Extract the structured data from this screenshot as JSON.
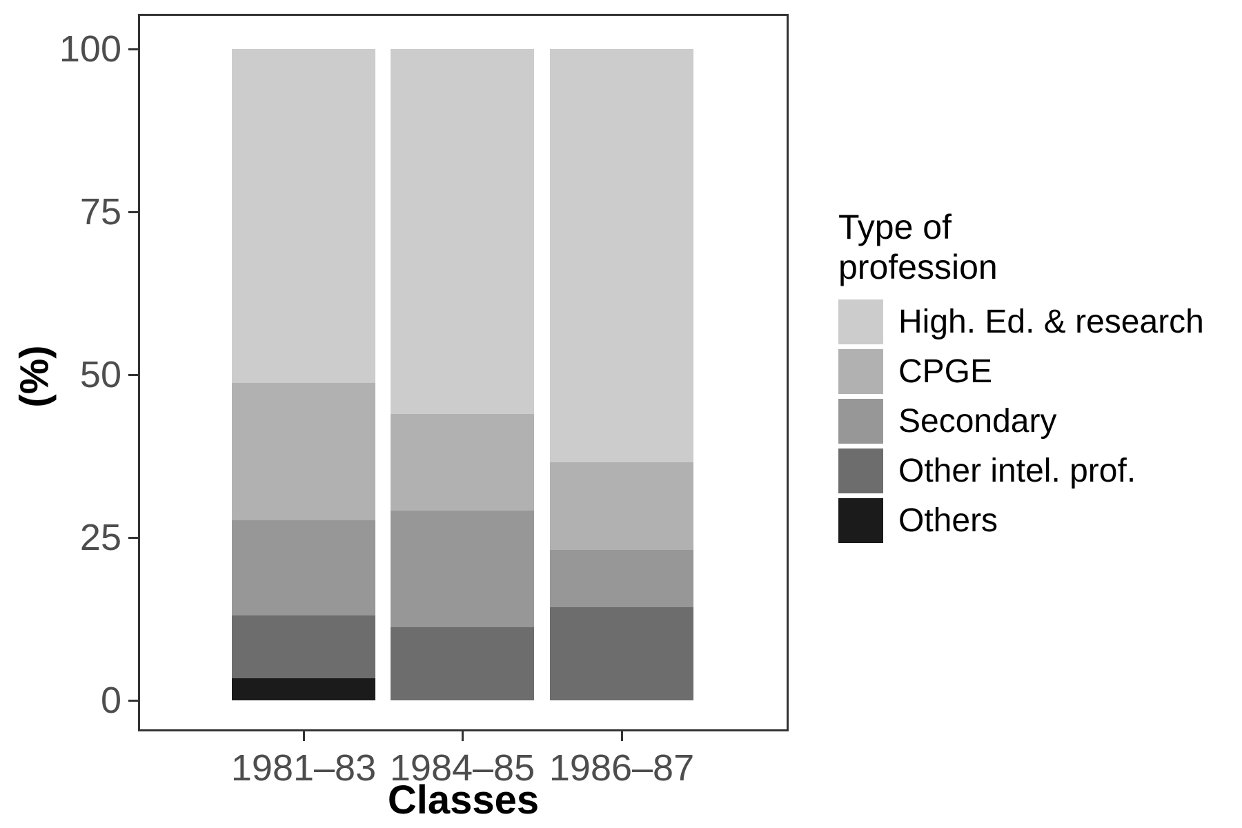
{
  "chart_data": {
    "type": "bar",
    "stacked": true,
    "orientation": "vertical",
    "title": "",
    "xlabel": "Classes",
    "ylabel": "(%)",
    "categories": [
      "1981–83",
      "1984–85",
      "1986–87"
    ],
    "y_ticks": [
      "0",
      "25",
      "50",
      "75",
      "100"
    ],
    "ylim": [
      0,
      100
    ],
    "grid": false,
    "legend_position": "right",
    "legend_title": "Type of profession",
    "series": [
      {
        "name": "High. Ed. & research",
        "color": "#cccccc",
        "values": [
          51.3,
          56.0,
          63.5
        ]
      },
      {
        "name": "CPGE",
        "color": "#b1b1b1",
        "values": [
          21.0,
          14.9,
          13.4
        ]
      },
      {
        "name": "Secondary",
        "color": "#979797",
        "values": [
          14.7,
          17.9,
          8.8
        ]
      },
      {
        "name": "Other intel. prof.",
        "color": "#6d6d6d",
        "values": [
          9.6,
          11.2,
          14.3
        ]
      },
      {
        "name": "Others",
        "color": "#1b1b1b",
        "values": [
          3.4,
          0,
          0
        ]
      }
    ]
  },
  "legend": {
    "title_line1": "Type of",
    "title_line2": "profession"
  },
  "colors": {
    "axis_text": "#4d4d4d",
    "axis_title": "#000000",
    "panel_border": "#333333",
    "background": "#ffffff"
  }
}
